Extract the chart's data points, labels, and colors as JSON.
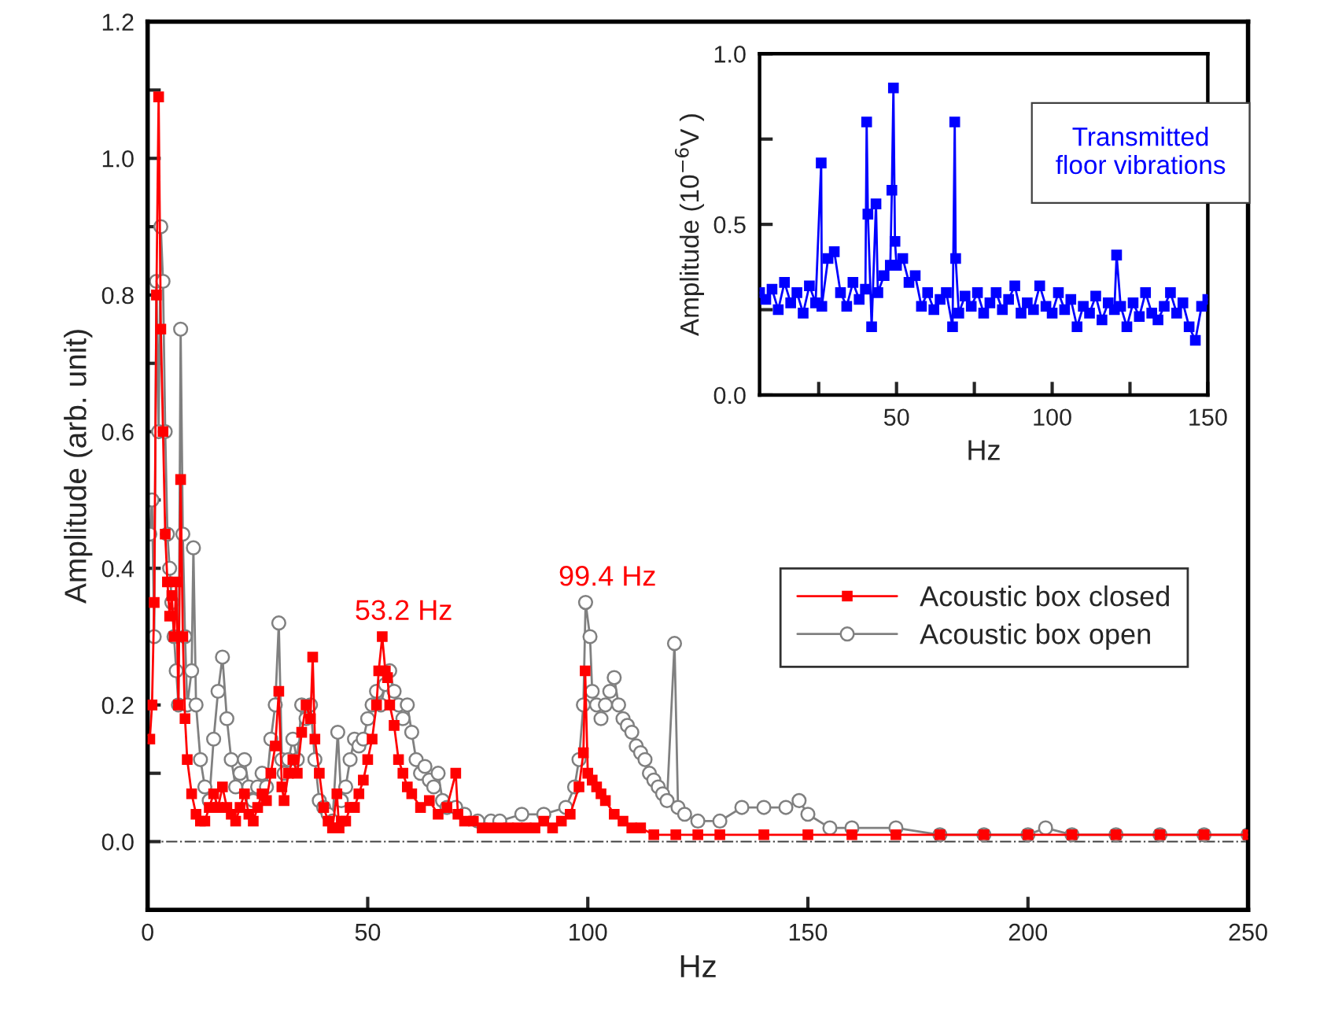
{
  "chart_data": [
    {
      "type": "line",
      "xlabel": "Hz",
      "ylabel": "Amplitude (arb. unit)",
      "xlim": [
        0,
        250
      ],
      "xticks": [
        0,
        50,
        100,
        150,
        200,
        250
      ],
      "ylim": [
        -0.1,
        1.2
      ],
      "yticks": [
        {
          "value": 0.0,
          "label": "0.0"
        },
        {
          "value": 0.1,
          "label": null
        },
        {
          "value": 0.2,
          "label": "0.2"
        },
        {
          "value": 0.3,
          "label": null
        },
        {
          "value": 0.4,
          "label": "0.4"
        },
        {
          "value": 0.5,
          "label": null
        },
        {
          "value": 0.6,
          "label": "0.6"
        },
        {
          "value": 0.7,
          "label": null
        },
        {
          "value": 0.8,
          "label": "0.8"
        },
        {
          "value": 0.9,
          "label": null
        },
        {
          "value": 1.0,
          "label": "1.0"
        },
        {
          "value": 1.1,
          "label": null
        },
        {
          "value": 1.2,
          "label": "1.2"
        }
      ],
      "grid": false,
      "legend": "right",
      "line_style": "solid",
      "ref_lines": [
        {
          "axis": "y",
          "value": 0,
          "color": "#404040",
          "line_style": "dashdot"
        }
      ],
      "annotations": [
        {
          "text": "53.2 Hz",
          "x": 53.2,
          "y": 0.3
        },
        {
          "text": "99.4 Hz",
          "x": 99.5,
          "y": 0.35
        }
      ],
      "series": [
        {
          "name": "Acoustic box closed",
          "color": "#ff0000",
          "marker": "square",
          "x": [
            0.5,
            1,
            1.5,
            2,
            2.5,
            3,
            3.5,
            4,
            4.5,
            5,
            5.5,
            6,
            6.5,
            7,
            7.5,
            8,
            8.5,
            9,
            10,
            11,
            12,
            13,
            14,
            15,
            16,
            17,
            18,
            19,
            20,
            21,
            22,
            23,
            24,
            25,
            26,
            27,
            28,
            29,
            29.8,
            30.5,
            31,
            32,
            33,
            34,
            35,
            36,
            37,
            37.5,
            38,
            39,
            40,
            41,
            42,
            43,
            43.5,
            44,
            45,
            46,
            47,
            48,
            49,
            50,
            51,
            52,
            52.5,
            53.3,
            54,
            54.5,
            55,
            56,
            57,
            58,
            59,
            60,
            62,
            64,
            66,
            68,
            70,
            70.5,
            72,
            74,
            76,
            78,
            80,
            82,
            84,
            86,
            88,
            90,
            92,
            94,
            96,
            98,
            99,
            99.4,
            100,
            101,
            102,
            103,
            104,
            106,
            108,
            110,
            112,
            115,
            120,
            125,
            130,
            140,
            150,
            160,
            170,
            180,
            190,
            200,
            210,
            220,
            230,
            240,
            250
          ],
          "values": [
            0.15,
            0.2,
            0.35,
            0.8,
            1.09,
            0.75,
            0.6,
            0.45,
            0.38,
            0.33,
            0.36,
            0.3,
            0.38,
            0.2,
            0.53,
            0.3,
            0.18,
            0.12,
            0.07,
            0.04,
            0.03,
            0.03,
            0.05,
            0.07,
            0.05,
            0.08,
            0.05,
            0.04,
            0.03,
            0.05,
            0.07,
            0.04,
            0.03,
            0.05,
            0.07,
            0.06,
            0.1,
            0.14,
            0.22,
            0.08,
            0.06,
            0.1,
            0.12,
            0.1,
            0.16,
            0.2,
            0.18,
            0.27,
            0.15,
            0.1,
            0.05,
            0.03,
            0.02,
            0.07,
            0.02,
            0.03,
            0.03,
            0.05,
            0.05,
            0.07,
            0.09,
            0.12,
            0.15,
            0.2,
            0.25,
            0.3,
            0.25,
            0.24,
            0.2,
            0.17,
            0.12,
            0.1,
            0.08,
            0.07,
            0.05,
            0.06,
            0.04,
            0.05,
            0.1,
            0.04,
            0.03,
            0.03,
            0.02,
            0.02,
            0.02,
            0.02,
            0.02,
            0.02,
            0.02,
            0.03,
            0.02,
            0.03,
            0.04,
            0.08,
            0.13,
            0.25,
            0.1,
            0.09,
            0.08,
            0.07,
            0.06,
            0.04,
            0.03,
            0.02,
            0.02,
            0.01,
            0.01,
            0.01,
            0.01,
            0.01,
            0.01,
            0.01,
            0.01,
            0.01,
            0.01,
            0.01,
            0.01,
            0.01,
            0.01,
            0.01,
            0.01
          ]
        },
        {
          "name": "Acoustic box open",
          "color": "#808080",
          "marker": "circle",
          "x": [
            0.5,
            1,
            1.5,
            2,
            2.5,
            3,
            3.5,
            4,
            4.5,
            5,
            5.5,
            6,
            6.5,
            7,
            7.5,
            8,
            8.5,
            9,
            10,
            10.4,
            11,
            12,
            13,
            14,
            15,
            16,
            17,
            18,
            19,
            20,
            21,
            22,
            23,
            24,
            25,
            26,
            27,
            28,
            29,
            29.8,
            30.5,
            31,
            32,
            33,
            34,
            35,
            36,
            37,
            38,
            39,
            40,
            41,
            42,
            43.2,
            44,
            45,
            46,
            47,
            48,
            49,
            50,
            51,
            52,
            53,
            54,
            55,
            56,
            57,
            58,
            59,
            60,
            61,
            62,
            63,
            64,
            65,
            66,
            67,
            68,
            70,
            72,
            75,
            78,
            80,
            85,
            90,
            95,
            97,
            98,
            99,
            99.5,
            100.5,
            101,
            102,
            103,
            104,
            105,
            106,
            107,
            108,
            109,
            110,
            111,
            112,
            113,
            114,
            115,
            116,
            117,
            118,
            119.7,
            120.5,
            122,
            125,
            130,
            135,
            140,
            145,
            148,
            150,
            155,
            160,
            170,
            180,
            190,
            200,
            204,
            210,
            220,
            230,
            240,
            250
          ],
          "values": [
            0.45,
            0.5,
            0.3,
            0.82,
            0.6,
            0.9,
            0.82,
            0.6,
            0.45,
            0.4,
            0.35,
            0.3,
            0.25,
            0.2,
            0.75,
            0.45,
            0.3,
            0.2,
            0.25,
            0.43,
            0.2,
            0.12,
            0.08,
            0.06,
            0.15,
            0.22,
            0.27,
            0.18,
            0.12,
            0.08,
            0.1,
            0.12,
            0.08,
            0.06,
            0.08,
            0.1,
            0.08,
            0.15,
            0.2,
            0.32,
            0.12,
            0.1,
            0.12,
            0.15,
            0.12,
            0.2,
            0.18,
            0.2,
            0.12,
            0.06,
            0.05,
            0.04,
            0.03,
            0.16,
            0.06,
            0.08,
            0.12,
            0.15,
            0.14,
            0.15,
            0.18,
            0.2,
            0.22,
            0.2,
            0.23,
            0.25,
            0.22,
            0.2,
            0.18,
            0.2,
            0.16,
            0.12,
            0.1,
            0.11,
            0.09,
            0.08,
            0.1,
            0.06,
            0.05,
            0.05,
            0.04,
            0.03,
            0.03,
            0.03,
            0.04,
            0.04,
            0.05,
            0.08,
            0.12,
            0.2,
            0.35,
            0.3,
            0.22,
            0.2,
            0.18,
            0.2,
            0.22,
            0.24,
            0.2,
            0.18,
            0.17,
            0.16,
            0.14,
            0.13,
            0.12,
            0.1,
            0.09,
            0.08,
            0.07,
            0.06,
            0.29,
            0.05,
            0.04,
            0.03,
            0.03,
            0.05,
            0.05,
            0.05,
            0.06,
            0.04,
            0.02,
            0.02,
            0.02,
            0.01,
            0.01,
            0.01,
            0.02,
            0.01,
            0.01,
            0.01,
            0.01,
            0.01
          ]
        }
      ]
    },
    {
      "type": "line",
      "xlabel": "Hz",
      "ylabel": "Amplitude (10$^{−6}$V )",
      "xlim": [
        6,
        150
      ],
      "xticks": [
        {
          "value": 25,
          "label": null
        },
        50,
        {
          "value": 75,
          "label": null
        },
        100,
        {
          "value": 125,
          "label": null
        },
        150
      ],
      "ylim": [
        0,
        1.0
      ],
      "yticks": [
        {
          "value": 0.0,
          "label": "0.0"
        },
        {
          "value": 0.25,
          "label": null
        },
        {
          "value": 0.5,
          "label": "0.5"
        },
        {
          "value": 0.75,
          "label": null
        },
        {
          "value": 1.0,
          "label": "1.0"
        }
      ],
      "grid": false,
      "line_style": "solid",
      "annotations": [
        "Transmitted\nfloor vibrations"
      ],
      "series": [
        {
          "color": "#0000ff",
          "marker": "square",
          "x": [
            6,
            8,
            10,
            12,
            14,
            16,
            18,
            20,
            22,
            24,
            25.8,
            26,
            28,
            30,
            32,
            34,
            36,
            38,
            40,
            40.4,
            40.8,
            42,
            43.4,
            44,
            46,
            48,
            48.5,
            49,
            49.5,
            50,
            52,
            54,
            56,
            58,
            60,
            62,
            64,
            66,
            68,
            68.7,
            69,
            70,
            72,
            74,
            76,
            78,
            80,
            82,
            84,
            86,
            88,
            90,
            92,
            94,
            96,
            98,
            100,
            102,
            104,
            106,
            108,
            110,
            112,
            114,
            116,
            118,
            120,
            120.7,
            122,
            124,
            126,
            128,
            130,
            132,
            134,
            136,
            138,
            140,
            142,
            144,
            146,
            148,
            150
          ],
          "values": [
            0.3,
            0.28,
            0.31,
            0.25,
            0.33,
            0.27,
            0.3,
            0.24,
            0.32,
            0.27,
            0.68,
            0.26,
            0.4,
            0.42,
            0.3,
            0.26,
            0.33,
            0.28,
            0.31,
            0.8,
            0.53,
            0.2,
            0.56,
            0.3,
            0.35,
            0.38,
            0.6,
            0.9,
            0.45,
            0.38,
            0.4,
            0.33,
            0.35,
            0.26,
            0.3,
            0.25,
            0.28,
            0.3,
            0.2,
            0.8,
            0.4,
            0.24,
            0.29,
            0.26,
            0.3,
            0.24,
            0.27,
            0.3,
            0.25,
            0.28,
            0.32,
            0.24,
            0.27,
            0.25,
            0.32,
            0.26,
            0.24,
            0.3,
            0.25,
            0.28,
            0.2,
            0.26,
            0.24,
            0.29,
            0.22,
            0.27,
            0.25,
            0.41,
            0.26,
            0.2,
            0.27,
            0.23,
            0.3,
            0.24,
            0.22,
            0.26,
            0.3,
            0.24,
            0.27,
            0.2,
            0.16,
            0.26,
            0.28
          ]
        }
      ]
    }
  ]
}
